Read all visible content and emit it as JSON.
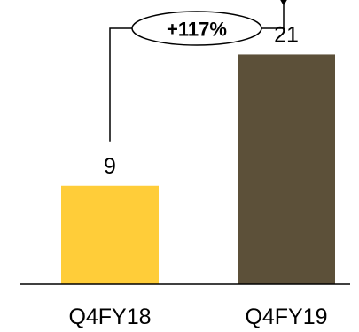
{
  "chart_data": {
    "type": "bar",
    "categories": [
      "Q4FY18",
      "Q4FY19"
    ],
    "values": [
      9,
      21
    ],
    "data_labels": [
      "9",
      "21"
    ],
    "colors": [
      "#FFCD39",
      "#5C5039"
    ],
    "title": "",
    "xlabel": "",
    "ylabel": "",
    "ylim": [
      0,
      25
    ],
    "grid": false,
    "legend": "none",
    "annotation": {
      "text": "+117%",
      "from": "Q4FY18",
      "to": "Q4FY19"
    }
  }
}
